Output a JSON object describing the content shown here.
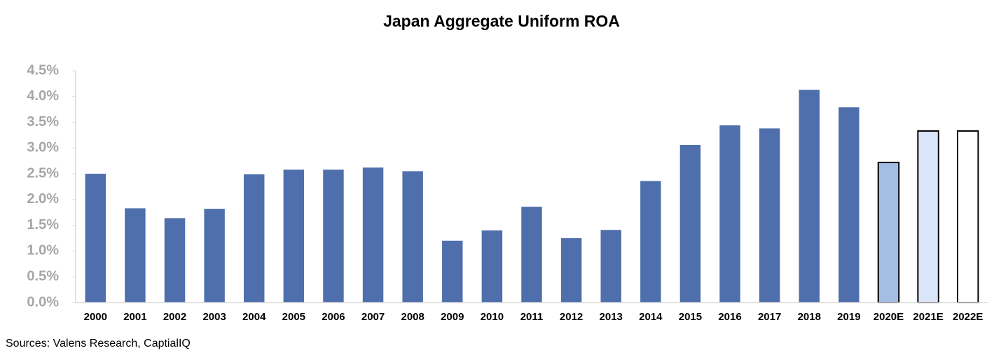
{
  "chart_data": {
    "type": "bar",
    "title": "Japan Aggregate Uniform ROA",
    "categories": [
      "2000",
      "2001",
      "2002",
      "2003",
      "2004",
      "2005",
      "2006",
      "2007",
      "2008",
      "2009",
      "2010",
      "2011",
      "2012",
      "2013",
      "2014",
      "2015",
      "2016",
      "2017",
      "2018",
      "2019",
      "2020E",
      "2021E",
      "2022E"
    ],
    "values": [
      2.5,
      1.83,
      1.64,
      1.82,
      2.49,
      2.58,
      2.58,
      2.62,
      2.55,
      1.2,
      1.4,
      1.86,
      1.25,
      1.41,
      2.36,
      3.06,
      3.44,
      3.38,
      4.13,
      3.79,
      2.72,
      3.33,
      3.33
    ],
    "colors": [
      "#4e6fab",
      "#4e6fab",
      "#4e6fab",
      "#4e6fab",
      "#4e6fab",
      "#4e6fab",
      "#4e6fab",
      "#4e6fab",
      "#4e6fab",
      "#4e6fab",
      "#4e6fab",
      "#4e6fab",
      "#4e6fab",
      "#4e6fab",
      "#4e6fab",
      "#4e6fab",
      "#4e6fab",
      "#4e6fab",
      "#4e6fab",
      "#4e6fab",
      "#a4bde3",
      "#dae5fa",
      "#ffffff"
    ],
    "edgecolors": [
      null,
      null,
      null,
      null,
      null,
      null,
      null,
      null,
      null,
      null,
      null,
      null,
      null,
      null,
      null,
      null,
      null,
      null,
      null,
      null,
      "#000000",
      "#000000",
      "#000000"
    ],
    "ylim": [
      0,
      4.5
    ],
    "yticks": [
      {
        "value": 0,
        "label": "0.0%"
      },
      {
        "value": 0.5,
        "label": "0.5%"
      },
      {
        "value": 1,
        "label": "1.0%"
      },
      {
        "value": 1.5,
        "label": "1.5%"
      },
      {
        "value": 2,
        "label": "2.0%"
      },
      {
        "value": 2.5,
        "label": "2.5%"
      },
      {
        "value": 3,
        "label": "3.0%"
      },
      {
        "value": 3.5,
        "label": "3.5%"
      },
      {
        "value": 4,
        "label": "4.0%"
      },
      {
        "value": 4.5,
        "label": "4.5%"
      }
    ],
    "grid": false,
    "source": "Sources: Valens Research,  CaptialIQ"
  }
}
